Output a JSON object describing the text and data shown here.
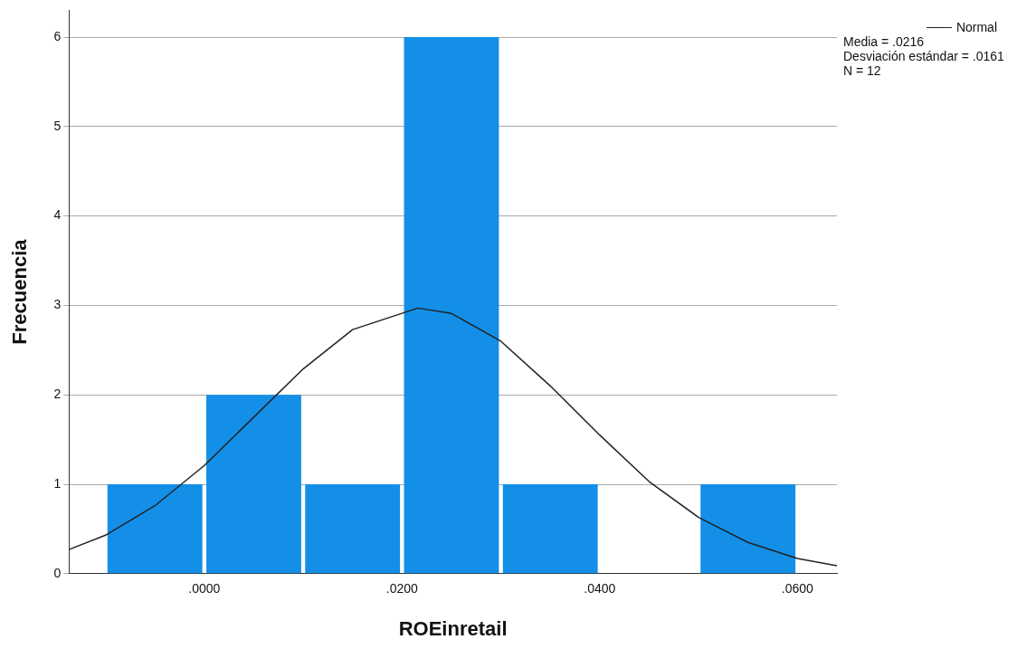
{
  "chart_data": {
    "type": "histogram",
    "xlabel": "ROEinretail",
    "ylabel": "Frecuencia",
    "bins": [
      -0.01,
      0,
      0.01,
      0.02,
      0.03,
      0.04,
      0.05,
      0.06
    ],
    "values": [
      1,
      2,
      1,
      6,
      1,
      0,
      1
    ],
    "color": "#138fe8",
    "series": [
      {
        "type": "line",
        "name": "Normal",
        "color": "#222222",
        "x": [
          -0.0137,
          -0.01,
          -0.005,
          0,
          0.005,
          0.01,
          0.015,
          0.0216,
          0.025,
          0.03,
          0.035,
          0.04,
          0.045,
          0.05,
          0.055,
          0.06,
          0.064
        ],
        "values": [
          0.27,
          0.43,
          0.76,
          1.21,
          1.75,
          2.29,
          2.73,
          2.97,
          2.91,
          2.6,
          2.1,
          1.55,
          1.03,
          0.63,
          0.35,
          0.17,
          0.09
        ]
      }
    ],
    "xlim": [
      -0.0137,
      0.064
    ],
    "xticks": [
      {
        "value": 0,
        "label": ".0000"
      },
      {
        "value": 0.02,
        "label": ".0200"
      },
      {
        "value": 0.04,
        "label": ".0400"
      },
      {
        "value": 0.06,
        "label": ".0600"
      }
    ],
    "ylim": [
      0,
      6.3
    ],
    "yticks": [
      0,
      1,
      2,
      3,
      4,
      5,
      6
    ],
    "grid": "y",
    "legend": "top right",
    "annotations": [
      "Media = .0216",
      "Desviación estándar = .0161",
      "N = 12"
    ]
  }
}
